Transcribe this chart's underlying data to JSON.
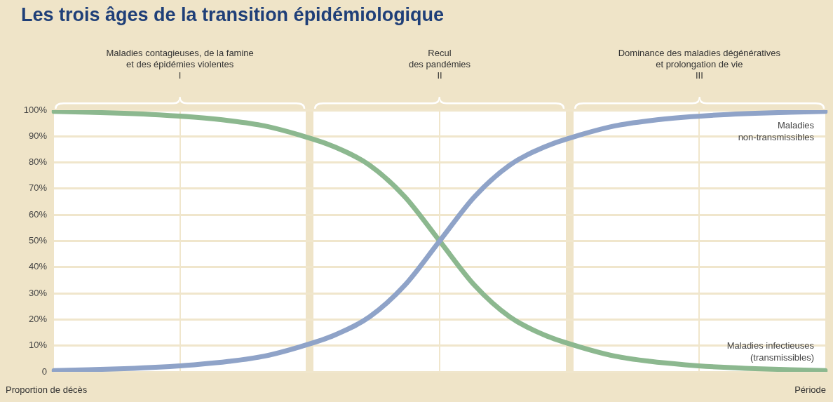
{
  "chart_data": {
    "type": "line",
    "title": "Les trois âges de la transition épidémiologique",
    "xlabel": "Période",
    "ylabel": "Proportion de décès",
    "annotations": [
      "Maladies contagieuses, de la famine\net des épidémies violentes\nI",
      "Recul\ndes pandémies\nII",
      "Dominance des maladies dégénératives\net prolongation de vie\nIII"
    ],
    "categories": [
      null,
      null,
      null,
      null,
      null,
      null,
      null,
      null,
      null,
      null,
      null,
      null,
      null,
      null,
      null,
      null,
      null,
      null,
      null,
      null,
      null,
      null,
      null
    ],
    "series": [
      {
        "name": "Maladies\nnon-transmissibles",
        "color": "#8fa3c8",
        "values": [
          0.5,
          0.8,
          1.2,
          1.8,
          2.7,
          4,
          6,
          9.5,
          14,
          21,
          33,
          50,
          67,
          79,
          86,
          90.5,
          94,
          96,
          97.3,
          98.2,
          98.8,
          99.2,
          99.5
        ]
      },
      {
        "name": "Maladies infectieuses\n(transmissibles)",
        "color": "#8cb88f",
        "values": [
          99.5,
          99.2,
          98.8,
          98.2,
          97.3,
          96,
          94,
          90.5,
          86,
          79,
          67,
          50,
          33,
          21,
          14,
          9.5,
          6,
          4,
          2.7,
          1.8,
          1.2,
          0.8,
          0.5
        ]
      }
    ],
    "ylim": [
      0,
      100
    ],
    "yticks": [
      0,
      {
        "value": 10,
        "label": "10%"
      },
      {
        "value": 20,
        "label": "20%"
      },
      {
        "value": 30,
        "label": "30%"
      },
      {
        "value": 40,
        "label": "40%"
      },
      {
        "value": 50,
        "label": "50%"
      },
      {
        "value": 60,
        "label": "60%"
      },
      {
        "value": 70,
        "label": "70%"
      },
      {
        "value": 80,
        "label": "80%"
      },
      {
        "value": 90,
        "label": "90%"
      },
      {
        "value": 100,
        "label": "100%"
      }
    ],
    "grid": "y",
    "legend": false,
    "marker": "none",
    "line_style": "solid"
  }
}
